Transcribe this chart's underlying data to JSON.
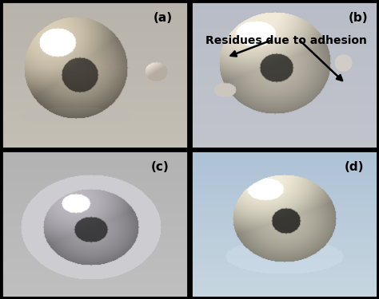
{
  "figsize": [
    4.74,
    3.75
  ],
  "dpi": 100,
  "labels": [
    "(a)",
    "(b)",
    "(c)",
    "(d)"
  ],
  "annotation_text": "Residues due to adhesion",
  "label_fontsize": 11,
  "annotation_fontsize": 10,
  "border_color": "#000000",
  "border_linewidth": 2.0,
  "divider_color": "#000000",
  "divider_linewidth": 2.0,
  "panel_a_bg": [
    185,
    180,
    170
  ],
  "panel_b_bg": [
    190,
    195,
    200
  ],
  "panel_c_bg": [
    175,
    175,
    175
  ],
  "panel_d_bg": [
    185,
    200,
    215
  ]
}
